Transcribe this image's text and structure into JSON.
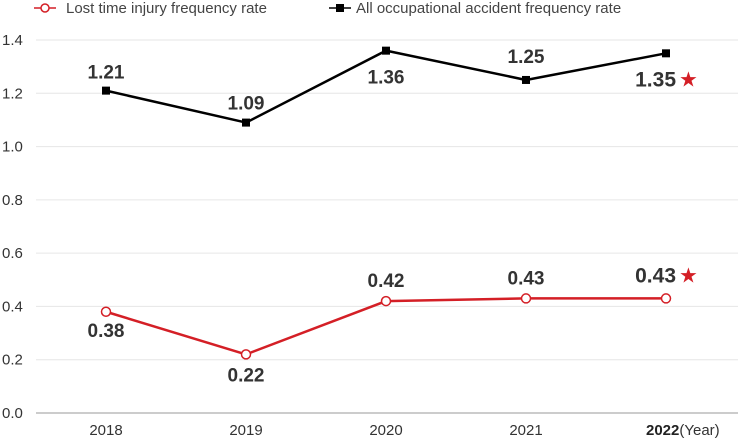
{
  "chart_data": {
    "type": "line",
    "categories": [
      "2018",
      "2019",
      "2020",
      "2021",
      "2022"
    ],
    "x_unit_label": "(Year)",
    "highlight_category": "2022",
    "highlight_marker": "★",
    "ylim": [
      0,
      1.4
    ],
    "y_ticks": [
      "0.0",
      "0.2",
      "0.4",
      "0.6",
      "0.8",
      "1.0",
      "1.2",
      "1.4"
    ],
    "grid": true,
    "legend_position": "top",
    "series": [
      {
        "name": "Lost time injury frequency rate",
        "values": [
          0.38,
          0.22,
          0.42,
          0.43,
          0.43
        ],
        "labels": [
          "0.38",
          "0.22",
          "0.42",
          "0.43",
          "0.43"
        ],
        "color": "#d41f26",
        "marker": "hollow-circle"
      },
      {
        "name": "All occupational accident frequency rate",
        "values": [
          1.21,
          1.09,
          1.36,
          1.25,
          1.35
        ],
        "labels": [
          "1.21",
          "1.09",
          "1.36",
          "1.25",
          "1.35"
        ],
        "color": "#000000",
        "marker": "filled-square"
      }
    ]
  }
}
